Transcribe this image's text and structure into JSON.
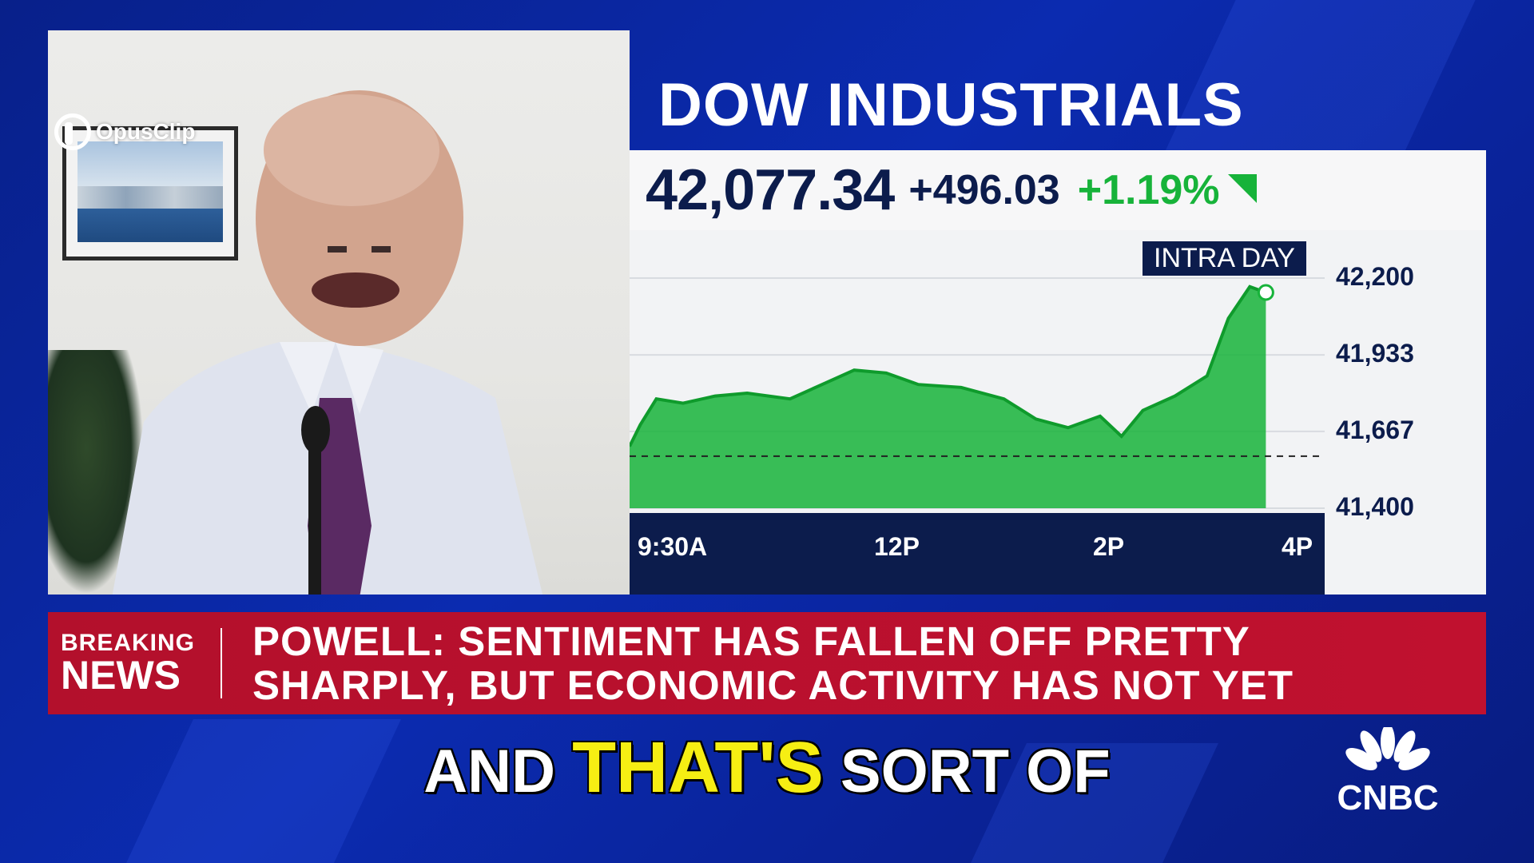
{
  "watermark": {
    "brand": "OpusClip",
    "icon": "opusclip-logo-icon"
  },
  "ticker": {
    "index_name": "DOW INDUSTRIALS",
    "value": "42,077.34",
    "change": "+496.03",
    "percent": "+1.19%",
    "direction_icon": "up-triangle-icon",
    "colors": {
      "positive": "#17b33a",
      "navy": "#0c1c4c"
    }
  },
  "chart_data": {
    "type": "area",
    "title": "INTRA DAY",
    "x_tick_labels": [
      "9:30A",
      "12P",
      "2P",
      "4P"
    ],
    "y_tick_labels": [
      "42,200",
      "41,933",
      "41,667",
      "41,400"
    ],
    "ylim": [
      41400,
      42200
    ],
    "previous_close": 41581,
    "x_hours": [
      9.5,
      9.6,
      9.75,
      10.0,
      10.3,
      10.6,
      11.0,
      11.3,
      11.6,
      11.9,
      12.2,
      12.6,
      13.0,
      13.3,
      13.6,
      13.9,
      14.1,
      14.3,
      14.6,
      14.9,
      15.1,
      15.3,
      15.45
    ],
    "values": [
      41615,
      41690,
      41780,
      41765,
      41790,
      41800,
      41780,
      41830,
      41880,
      41870,
      41830,
      41820,
      41780,
      41710,
      41680,
      41720,
      41650,
      41740,
      41790,
      41860,
      42060,
      42170,
      42150
    ],
    "grid": true,
    "series_color": "#17b33a"
  },
  "news": {
    "label_top": "BREAKING",
    "label_bottom": "NEWS",
    "headline_line1": "POWELL: SENTIMENT HAS FALLEN OFF PRETTY",
    "headline_line2": "SHARPLY, BUT ECONOMIC ACTIVITY HAS NOT YET",
    "color": "#c0112f"
  },
  "caption": {
    "before": "AND",
    "highlight": "THAT'S",
    "after": "SORT OF",
    "highlight_color": "#f6ee13"
  },
  "network": {
    "name": "CNBC",
    "icon": "peacock-icon"
  }
}
